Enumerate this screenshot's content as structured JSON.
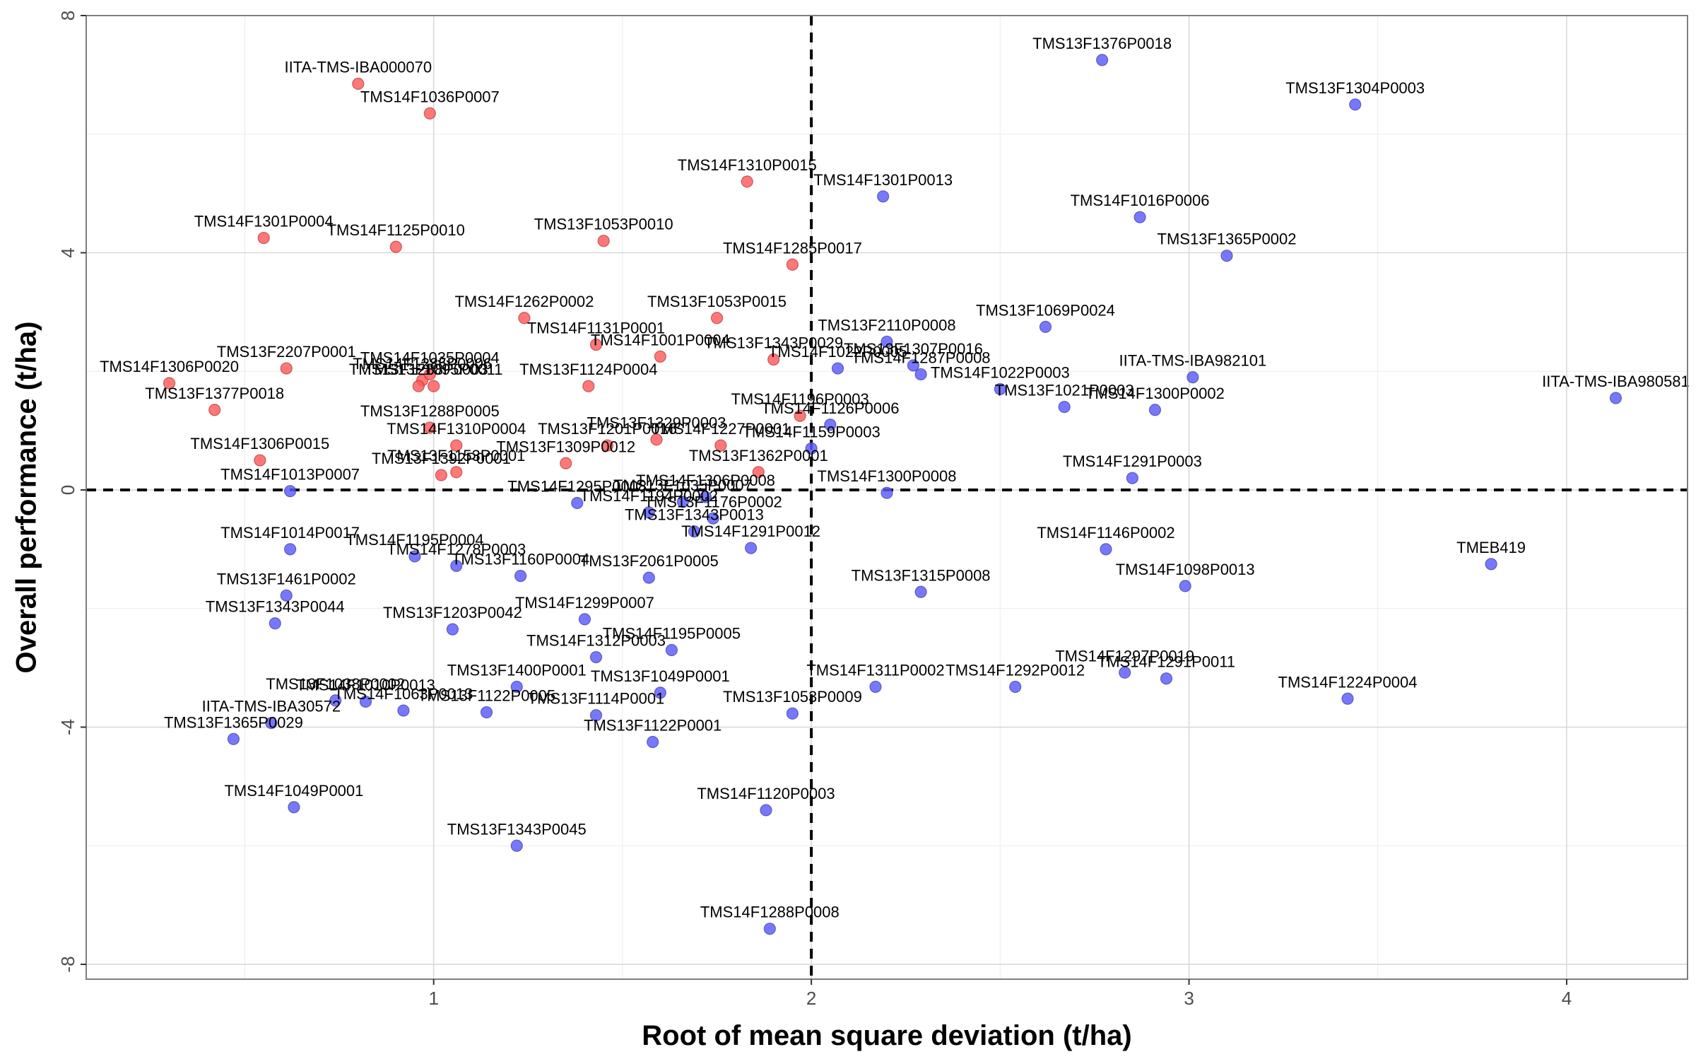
{
  "chart_data": {
    "type": "scatter",
    "xlabel": "Root of mean square deviation (t/ha)",
    "ylabel": "Overall performance (t/ha)",
    "xlim": [
      0.08,
      4.32
    ],
    "ylim": [
      -8.25,
      8.0
    ],
    "xticks": [
      1,
      2,
      3,
      4
    ],
    "yticks": [
      -8,
      -4,
      0,
      4,
      8
    ],
    "xminor": [
      0.5,
      1.5,
      2.5,
      3.5
    ],
    "yminor": [
      -6,
      -2,
      2,
      6
    ],
    "grid": true,
    "reference_lines": {
      "x": 2,
      "y": 0
    },
    "colors": {
      "above": "#ff5a5a",
      "below": "#5a5aff",
      "edge": "#3a3a9a",
      "edge_red": "#b03030"
    },
    "points": [
      {
        "label": "TMS13F1376P0018",
        "x": 2.77,
        "y": 7.25,
        "group": "blue"
      },
      {
        "label": "TMS13F1304P0003",
        "x": 3.44,
        "y": 6.5,
        "group": "blue"
      },
      {
        "label": "IITA-TMS-IBA000070",
        "x": 0.8,
        "y": 6.85,
        "group": "red"
      },
      {
        "label": "TMS14F1036P0007",
        "x": 0.99,
        "y": 6.35,
        "group": "red"
      },
      {
        "label": "TMS14F1310P0015",
        "x": 1.83,
        "y": 5.2,
        "group": "red"
      },
      {
        "label": "TMS14F1301P0013",
        "x": 2.19,
        "y": 4.95,
        "group": "blue"
      },
      {
        "label": "TMS14F1016P0006",
        "x": 2.87,
        "y": 4.6,
        "group": "blue"
      },
      {
        "label": "TMS13F1365P0002",
        "x": 3.1,
        "y": 3.95,
        "group": "blue"
      },
      {
        "label": "TMS14F1301P0004",
        "x": 0.55,
        "y": 4.25,
        "group": "red"
      },
      {
        "label": "TMS14F1125P0010",
        "x": 0.9,
        "y": 4.1,
        "group": "red"
      },
      {
        "label": "TMS13F1053P0010",
        "x": 1.45,
        "y": 4.2,
        "group": "red"
      },
      {
        "label": "TMS14F1285P0017",
        "x": 1.95,
        "y": 3.8,
        "group": "red"
      },
      {
        "label": "TMS14F1262P0002",
        "x": 1.24,
        "y": 2.9,
        "group": "red"
      },
      {
        "label": "TMS13F1053P0015",
        "x": 1.75,
        "y": 2.9,
        "group": "red"
      },
      {
        "label": "TMS14F1131P0001",
        "x": 1.43,
        "y": 2.45,
        "group": "red"
      },
      {
        "label": "TMS13F1069P0024",
        "x": 2.62,
        "y": 2.75,
        "group": "blue"
      },
      {
        "label": "TMS13F2110P0008",
        "x": 2.2,
        "y": 2.5,
        "group": "blue"
      },
      {
        "label": "TMS14F1001P0004",
        "x": 1.6,
        "y": 2.25,
        "group": "red"
      },
      {
        "label": "TMS13F1343P0029",
        "x": 1.9,
        "y": 2.2,
        "group": "red"
      },
      {
        "label": "TMS13F1307P0016",
        "x": 2.27,
        "y": 2.1,
        "group": "blue"
      },
      {
        "label": "TMS14F1022P0005",
        "x": 2.07,
        "y": 2.05,
        "group": "blue"
      },
      {
        "label": "TMS14F1287P0008",
        "x": 2.29,
        "y": 1.95,
        "group": "blue"
      },
      {
        "label": "TMS14F1022P0003",
        "x": 2.5,
        "y": 1.7,
        "group": "blue"
      },
      {
        "label": "IITA-TMS-IBA982101",
        "x": 3.01,
        "y": 1.9,
        "group": "blue"
      },
      {
        "label": "IITA-TMS-IBA980581",
        "x": 4.13,
        "y": 1.55,
        "group": "blue"
      },
      {
        "label": "TMS13F2207P0001",
        "x": 0.61,
        "y": 2.05,
        "group": "red"
      },
      {
        "label": "TMS14F1285P0006",
        "x": 0.97,
        "y": 1.85,
        "group": "red"
      },
      {
        "label": "TMS14F1306P0020",
        "x": 0.3,
        "y": 1.8,
        "group": "red"
      },
      {
        "label": "TMS14F1035P0004",
        "x": 0.99,
        "y": 1.95,
        "group": "red"
      },
      {
        "label": "TMS13F1288P0003",
        "x": 0.96,
        "y": 1.75,
        "group": "red"
      },
      {
        "label": "TMS13F1095P0011",
        "x": 1.0,
        "y": 1.75,
        "group": "red"
      },
      {
        "label": "TMS13F1124P0004",
        "x": 1.41,
        "y": 1.75,
        "group": "red"
      },
      {
        "label": "TMS13F1377P0018",
        "x": 0.42,
        "y": 1.35,
        "group": "red"
      },
      {
        "label": "TMS13F1021P0003",
        "x": 2.67,
        "y": 1.4,
        "group": "blue"
      },
      {
        "label": "TMS14F1300P0002",
        "x": 2.91,
        "y": 1.35,
        "group": "blue"
      },
      {
        "label": "TMS14F1196P0003",
        "x": 1.97,
        "y": 1.25,
        "group": "red"
      },
      {
        "label": "TMS14F1126P0006",
        "x": 2.05,
        "y": 1.1,
        "group": "blue"
      },
      {
        "label": "TMS14F1159P0003",
        "x": 2.0,
        "y": 0.7,
        "group": "blue"
      },
      {
        "label": "TMS13F1288P0005",
        "x": 0.99,
        "y": 1.05,
        "group": "red"
      },
      {
        "label": "TMS14F1310P0004",
        "x": 1.06,
        "y": 0.75,
        "group": "red"
      },
      {
        "label": "TMS13F1329P0003",
        "x": 1.59,
        "y": 0.85,
        "group": "red"
      },
      {
        "label": "TMS13F1201P0016",
        "x": 1.46,
        "y": 0.75,
        "group": "red"
      },
      {
        "label": "TMS14F1227P0001",
        "x": 1.76,
        "y": 0.75,
        "group": "red"
      },
      {
        "label": "TMS14F1306P0015",
        "x": 0.54,
        "y": 0.5,
        "group": "red"
      },
      {
        "label": "TMS13F1309P0012",
        "x": 1.35,
        "y": 0.45,
        "group": "red"
      },
      {
        "label": "TMS13F1362P0001",
        "x": 1.86,
        "y": 0.3,
        "group": "red"
      },
      {
        "label": "TMS13F1392P0001",
        "x": 1.02,
        "y": 0.25,
        "group": "red"
      },
      {
        "label": "TMS13F1153P0001",
        "x": 1.06,
        "y": 0.3,
        "group": "red"
      },
      {
        "label": "TMS14F1291P0003",
        "x": 2.85,
        "y": 0.2,
        "group": "blue"
      },
      {
        "label": "TMS14F1013P0007",
        "x": 0.62,
        "y": -0.02,
        "group": "blue"
      },
      {
        "label": "TMS14F1300P0008",
        "x": 2.2,
        "y": -0.05,
        "group": "blue"
      },
      {
        "label": "TMS14F1295P0008",
        "x": 1.38,
        "y": -0.22,
        "group": "blue"
      },
      {
        "label": "TMS14F1306P0008",
        "x": 1.72,
        "y": -0.12,
        "group": "blue"
      },
      {
        "label": "TMS13F1035P0007",
        "x": 1.66,
        "y": -0.2,
        "group": "blue"
      },
      {
        "label": "TMS14F1194P0002",
        "x": 1.57,
        "y": -0.38,
        "group": "blue"
      },
      {
        "label": "TMS13F1176P0002",
        "x": 1.74,
        "y": -0.48,
        "group": "blue"
      },
      {
        "label": "TMS13F1343P0013",
        "x": 1.69,
        "y": -0.7,
        "group": "blue"
      },
      {
        "label": "TMS14F1146P0002",
        "x": 2.78,
        "y": -1.0,
        "group": "blue"
      },
      {
        "label": "TMEB419",
        "x": 3.8,
        "y": -1.25,
        "group": "blue"
      },
      {
        "label": "TMS14F1291P0012",
        "x": 1.84,
        "y": -0.98,
        "group": "blue"
      },
      {
        "label": "TMS14F1014P0017",
        "x": 0.62,
        "y": -1.0,
        "group": "blue"
      },
      {
        "label": "TMS14F1195P0004",
        "x": 0.95,
        "y": -1.12,
        "group": "blue"
      },
      {
        "label": "TMS14F1278P0003",
        "x": 1.06,
        "y": -1.28,
        "group": "blue"
      },
      {
        "label": "TMS13F1160P0004",
        "x": 1.23,
        "y": -1.45,
        "group": "blue"
      },
      {
        "label": "TMS13F2061P0005",
        "x": 1.57,
        "y": -1.48,
        "group": "blue"
      },
      {
        "label": "TMS13F1315P0008",
        "x": 2.29,
        "y": -1.72,
        "group": "blue"
      },
      {
        "label": "TMS14F1098P0013",
        "x": 2.99,
        "y": -1.62,
        "group": "blue"
      },
      {
        "label": "TMS13F1461P0002",
        "x": 0.61,
        "y": -1.78,
        "group": "blue"
      },
      {
        "label": "TMS13F1343P0044",
        "x": 0.58,
        "y": -2.25,
        "group": "blue"
      },
      {
        "label": "TMS14F1299P0007",
        "x": 1.4,
        "y": -2.18,
        "group": "blue"
      },
      {
        "label": "TMS13F1203P0042",
        "x": 1.05,
        "y": -2.35,
        "group": "blue"
      },
      {
        "label": "TMS14F1312P0003",
        "x": 1.43,
        "y": -2.82,
        "group": "blue"
      },
      {
        "label": "TMS14F1195P0005",
        "x": 1.63,
        "y": -2.7,
        "group": "blue"
      },
      {
        "label": "TMS14F1297P0019",
        "x": 2.83,
        "y": -3.08,
        "group": "blue"
      },
      {
        "label": "TMS14F1291P0011",
        "x": 2.94,
        "y": -3.18,
        "group": "blue"
      },
      {
        "label": "TMS14F1224P0004",
        "x": 3.42,
        "y": -3.52,
        "group": "blue"
      },
      {
        "label": "TMS14F1311P0002",
        "x": 2.17,
        "y": -3.32,
        "group": "blue"
      },
      {
        "label": "TMS14F1292P0012",
        "x": 2.54,
        "y": -3.32,
        "group": "blue"
      },
      {
        "label": "TMS13F1400P0001",
        "x": 1.22,
        "y": -3.32,
        "group": "blue"
      },
      {
        "label": "TMS13F1049P0001",
        "x": 1.6,
        "y": -3.42,
        "group": "blue"
      },
      {
        "label": "TMS13F1053P0009",
        "x": 1.95,
        "y": -3.77,
        "group": "blue"
      },
      {
        "label": "TMS13F1038P0002",
        "x": 0.74,
        "y": -3.55,
        "group": "blue"
      },
      {
        "label": "TMS14F1010P0013",
        "x": 0.82,
        "y": -3.57,
        "group": "blue"
      },
      {
        "label": "TMS14F1063P0013",
        "x": 0.92,
        "y": -3.72,
        "group": "blue"
      },
      {
        "label": "TMS13F1122P0005",
        "x": 1.14,
        "y": -3.75,
        "group": "blue"
      },
      {
        "label": "TMS13F1114P0001",
        "x": 1.43,
        "y": -3.8,
        "group": "blue"
      },
      {
        "label": "IITA-TMS-IBA30572",
        "x": 0.57,
        "y": -3.93,
        "group": "blue"
      },
      {
        "label": "TMS13F1365P0029",
        "x": 0.47,
        "y": -4.2,
        "group": "blue"
      },
      {
        "label": "TMS13F1122P0001",
        "x": 1.58,
        "y": -4.25,
        "group": "blue"
      },
      {
        "label": "TMS14F1049P0001",
        "x": 0.63,
        "y": -5.35,
        "group": "blue"
      },
      {
        "label": "TMS14F1120P0003",
        "x": 1.88,
        "y": -5.4,
        "group": "blue"
      },
      {
        "label": "TMS13F1343P0045",
        "x": 1.22,
        "y": -6.0,
        "group": "blue"
      },
      {
        "label": "TMS14F1288P0008",
        "x": 1.89,
        "y": -7.4,
        "group": "blue"
      }
    ]
  }
}
